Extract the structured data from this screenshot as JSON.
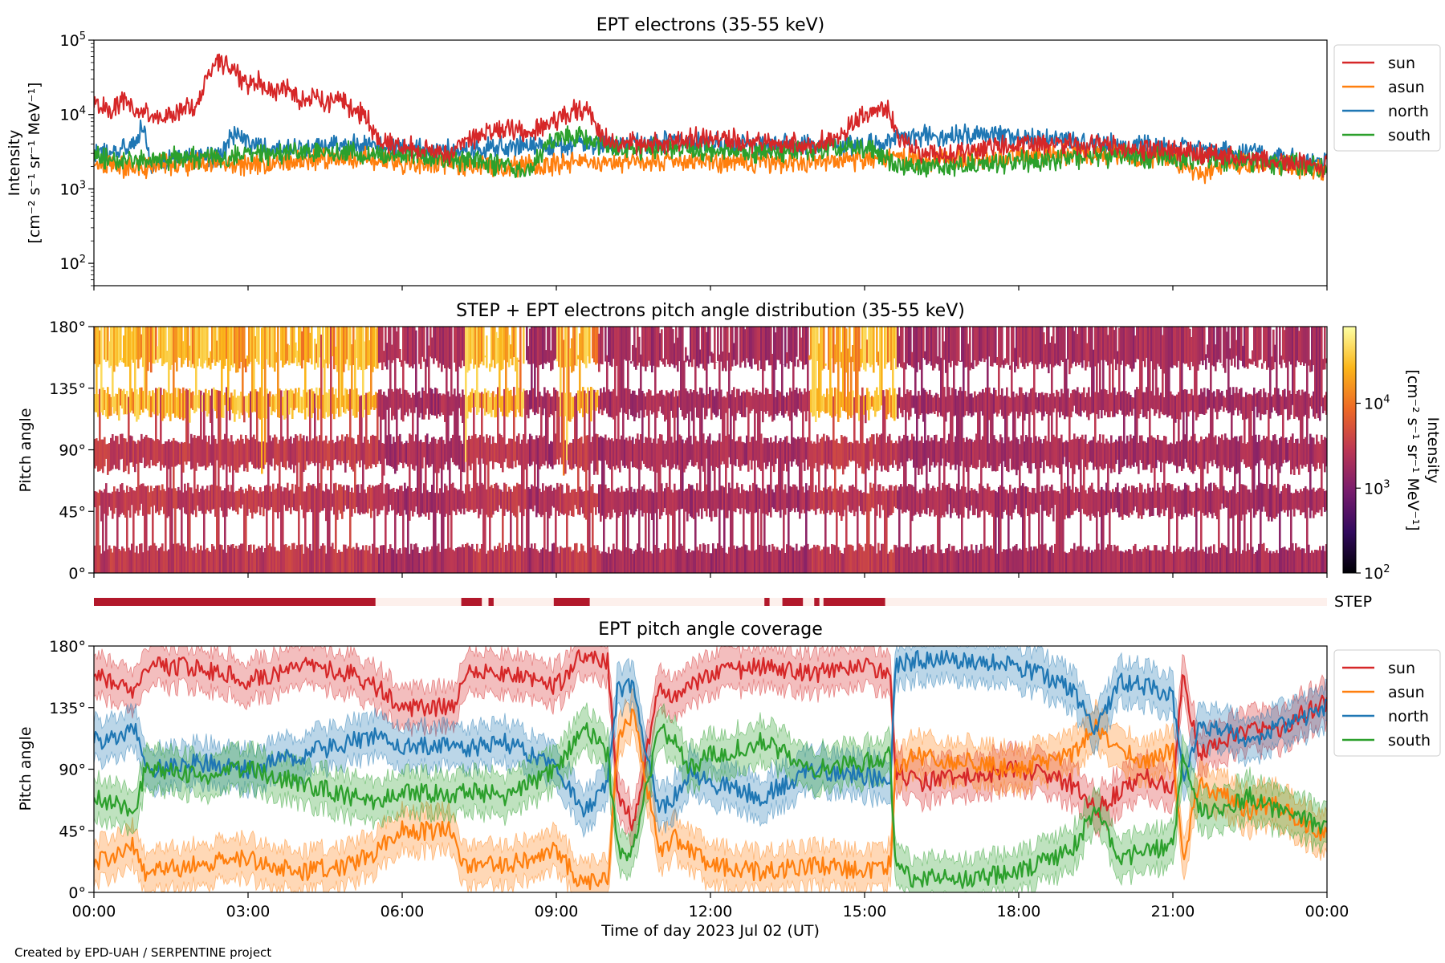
{
  "chart_data": [
    {
      "type": "line",
      "title": "EPT electrons (35-55 keV)",
      "ylabel_line1": "Intensity",
      "ylabel_line2": "[cm⁻² s⁻¹ sr⁻¹ MeV⁻¹]",
      "yscale": "log",
      "ylim": [
        50,
        100000
      ],
      "xlim_hours": [
        0,
        24
      ],
      "yticks": [
        {
          "base": "10",
          "exp": "2",
          "value": 100
        },
        {
          "base": "10",
          "exp": "3",
          "value": 1000
        },
        {
          "base": "10",
          "exp": "4",
          "value": 10000
        },
        {
          "base": "10",
          "exp": "5",
          "value": 100000
        }
      ],
      "legend_position": "outside-right-top",
      "series": [
        {
          "name": "sun",
          "color": "#d62728",
          "x": [
            0,
            0.3,
            0.6,
            0.8,
            1,
            1.2,
            1.5,
            1.8,
            2,
            2.2,
            2.4,
            2.6,
            2.8,
            3,
            3.2,
            3.5,
            3.8,
            4,
            4.3,
            4.5,
            4.8,
            5,
            5.3,
            5.5,
            6,
            6.5,
            7,
            7.2,
            7.5,
            8,
            8.5,
            9,
            9.3,
            9.6,
            9.8,
            10,
            10.5,
            11,
            11.5,
            12,
            12.5,
            13,
            13.5,
            14,
            14.5,
            15,
            15.2,
            15.5,
            15.6,
            16,
            16.5,
            17,
            17.5,
            18,
            18.5,
            19,
            19.5,
            20,
            20.5,
            21,
            21.5,
            22,
            22.5,
            23,
            23.5,
            24
          ],
          "y": [
            14000,
            12000,
            15000,
            11000,
            11000,
            9000,
            9500,
            13000,
            12000,
            30000,
            55000,
            45000,
            35000,
            25000,
            28000,
            20000,
            23000,
            16000,
            18000,
            13000,
            17000,
            12000,
            9000,
            4500,
            3800,
            3200,
            3000,
            4500,
            5200,
            6500,
            6000,
            8500,
            11000,
            11500,
            6000,
            4500,
            4200,
            4000,
            4500,
            5000,
            4500,
            4200,
            4000,
            4000,
            4500,
            10000,
            12000,
            11000,
            5200,
            3200,
            3000,
            3200,
            3600,
            4000,
            4300,
            4000,
            3800,
            3600,
            3400,
            3300,
            3000,
            2900,
            2600,
            2400,
            2200,
            2000
          ]
        },
        {
          "name": "asun",
          "color": "#ff7f0e",
          "x": [
            0,
            1,
            2,
            3,
            4,
            5,
            5.5,
            6,
            7,
            8,
            9,
            10,
            11,
            12,
            13,
            14,
            15,
            15.6,
            16,
            17,
            18,
            19,
            20,
            21,
            21.5,
            22,
            23,
            24
          ],
          "y": [
            2100,
            1900,
            2200,
            2100,
            2400,
            2700,
            2500,
            2300,
            2100,
            2000,
            2100,
            2200,
            2300,
            2300,
            2300,
            2300,
            2400,
            2700,
            2500,
            2500,
            2800,
            2900,
            2800,
            2500,
            1500,
            2200,
            2000,
            1800
          ]
        },
        {
          "name": "north",
          "color": "#1f77b4",
          "x": [
            0,
            0.5,
            0.8,
            0.95,
            1.1,
            1.5,
            2,
            2.5,
            2.8,
            3,
            3.5,
            4,
            4.5,
            5,
            5.5,
            6,
            7,
            8,
            9,
            10,
            11,
            12,
            13,
            14,
            15,
            15.6,
            16,
            17,
            18,
            19,
            20,
            21,
            22,
            23,
            24
          ],
          "y": [
            3000,
            3200,
            4000,
            7000,
            2000,
            2500,
            2600,
            3000,
            6000,
            4000,
            3300,
            3500,
            3600,
            4000,
            3800,
            3500,
            3200,
            3600,
            3800,
            4000,
            4300,
            4200,
            4000,
            3900,
            3700,
            4600,
            5000,
            5200,
            5000,
            4500,
            3800,
            3500,
            3300,
            2700,
            2200
          ]
        },
        {
          "name": "south",
          "color": "#2ca02c",
          "x": [
            0,
            1,
            2,
            3,
            4,
            5,
            5.5,
            6,
            7,
            8,
            8.5,
            9,
            9.5,
            10,
            11,
            12,
            13,
            14,
            15,
            15.6,
            16,
            17,
            18,
            19,
            20,
            21,
            22,
            23,
            24
          ],
          "y": [
            2600,
            2400,
            2700,
            2800,
            3000,
            3100,
            2800,
            3000,
            2600,
            2100,
            1700,
            4800,
            5200,
            3600,
            3400,
            3200,
            3100,
            3400,
            3700,
            2000,
            1900,
            2100,
            2400,
            2600,
            2800,
            2600,
            2500,
            2200,
            1900
          ]
        }
      ]
    },
    {
      "type": "heatmap",
      "title": "STEP + EPT electrons pitch angle distribution (35-55 keV)",
      "ylabel": "Pitch angle",
      "ylim_deg": [
        0,
        180
      ],
      "yticks": [
        "0°",
        "45°",
        "90°",
        "135°",
        "180°"
      ],
      "colorbar": {
        "label": "Intensity",
        "units": "[cm⁻² s⁻¹ sr⁻¹ MeV⁻¹]",
        "scale": "log",
        "range": [
          100,
          80000
        ],
        "ticks": [
          {
            "base": "10",
            "exp": "2",
            "value": 100
          },
          {
            "base": "10",
            "exp": "3",
            "value": 1000
          },
          {
            "base": "10",
            "exp": "4",
            "value": 10000
          }
        ],
        "colormap": [
          "#000004",
          "#320a5e",
          "#781c6d",
          "#bc3754",
          "#ed6925",
          "#fbb61a",
          "#fcffa4"
        ]
      },
      "gap_bands_deg": [
        [
          18,
          44
        ],
        [
          62,
          78
        ],
        [
          98,
          116
        ],
        [
          132,
          152
        ]
      ],
      "high_flux_intervals_hours": [
        [
          0,
          5.5
        ],
        [
          7.2,
          8.4
        ],
        [
          9.0,
          9.8
        ],
        [
          13.9,
          15.6
        ]
      ],
      "step_coverage": {
        "label": "STEP",
        "on_color": "#b2182b",
        "off_color": "#fdf0ec",
        "on_intervals_hours": [
          [
            0,
            5.48
          ],
          [
            7.15,
            7.55
          ],
          [
            7.68,
            7.78
          ],
          [
            8.95,
            9.65
          ],
          [
            13.05,
            13.15
          ],
          [
            13.4,
            13.8
          ],
          [
            14.02,
            14.12
          ],
          [
            14.2,
            15.4
          ]
        ]
      }
    },
    {
      "type": "line",
      "title": "EPT pitch angle coverage",
      "ylabel": "Pitch angle",
      "xlabel": "Time of day 2023 Jul 02 (UT)",
      "ylim_deg": [
        0,
        180
      ],
      "yticks": [
        "0°",
        "45°",
        "90°",
        "135°",
        "180°"
      ],
      "xticks": [
        "00:00",
        "03:00",
        "06:00",
        "09:00",
        "12:00",
        "15:00",
        "18:00",
        "21:00",
        "00:00"
      ],
      "band_halfwidth_deg": 15,
      "legend_position": "outside-right-top",
      "series": [
        {
          "name": "sun",
          "color": "#d62728",
          "x": [
            0,
            0.5,
            0.8,
            1,
            2,
            3,
            4,
            5,
            5.5,
            6,
            7,
            7.2,
            8,
            9,
            9.5,
            9.8,
            10,
            10.2,
            10.5,
            11,
            11.3,
            11.6,
            12,
            13,
            14,
            15,
            15.5,
            15.6,
            16,
            17,
            18,
            19,
            19.5,
            20,
            20.5,
            21,
            21.2,
            21.5,
            22,
            22.5,
            23,
            23.5,
            24
          ],
          "y": [
            160,
            150,
            145,
            165,
            165,
            155,
            165,
            160,
            150,
            135,
            135,
            160,
            160,
            150,
            175,
            170,
            170,
            70,
            50,
            150,
            140,
            150,
            160,
            165,
            160,
            165,
            160,
            90,
            80,
            85,
            90,
            80,
            60,
            75,
            85,
            75,
            160,
            100,
            110,
            120,
            115,
            130,
            140
          ]
        },
        {
          "name": "asun",
          "color": "#ff7f0e",
          "x": [
            0,
            0.5,
            0.8,
            1,
            2,
            3,
            4,
            5,
            5.5,
            6,
            7,
            7.2,
            8,
            9,
            9.5,
            9.8,
            10,
            10.2,
            10.5,
            11,
            11.3,
            11.6,
            12,
            13,
            14,
            15,
            15.5,
            15.6,
            16,
            17,
            18,
            19,
            19.5,
            20,
            20.5,
            21,
            21.2,
            21.5,
            22,
            22.5,
            23,
            23.5,
            24
          ],
          "y": [
            20,
            30,
            35,
            15,
            20,
            25,
            15,
            20,
            30,
            45,
            45,
            20,
            20,
            30,
            5,
            10,
            10,
            110,
            130,
            30,
            40,
            30,
            20,
            15,
            20,
            15,
            20,
            90,
            100,
            95,
            90,
            100,
            120,
            105,
            95,
            105,
            20,
            80,
            70,
            60,
            65,
            50,
            40
          ]
        },
        {
          "name": "north",
          "color": "#1f77b4",
          "x": [
            0,
            0.5,
            0.8,
            1,
            2,
            3,
            4,
            5,
            5.5,
            6,
            7,
            7.2,
            8,
            9,
            9.5,
            9.8,
            10,
            10.2,
            10.5,
            11,
            11.3,
            11.6,
            12,
            13,
            14,
            15,
            15.5,
            15.6,
            16,
            17,
            18,
            19,
            19.5,
            20,
            20.5,
            21,
            21.2,
            21.5,
            22,
            22.5,
            23,
            23.5,
            24
          ],
          "y": [
            110,
            115,
            120,
            90,
            95,
            90,
            100,
            110,
            115,
            105,
            110,
            105,
            110,
            90,
            60,
            70,
            80,
            150,
            150,
            60,
            70,
            90,
            80,
            70,
            90,
            85,
            80,
            165,
            170,
            170,
            165,
            150,
            120,
            155,
            150,
            145,
            80,
            120,
            120,
            110,
            120,
            125,
            135
          ]
        },
        {
          "name": "south",
          "color": "#2ca02c",
          "x": [
            0,
            0.5,
            0.8,
            1,
            2,
            3,
            4,
            5,
            5.5,
            6,
            7,
            7.2,
            8,
            9,
            9.5,
            9.8,
            10,
            10.2,
            10.5,
            11,
            11.3,
            11.6,
            12,
            13,
            14,
            15,
            15.5,
            15.6,
            16,
            17,
            18,
            19,
            19.5,
            20,
            20.5,
            21,
            21.2,
            21.5,
            22,
            22.5,
            23,
            23.5,
            24
          ],
          "y": [
            70,
            65,
            60,
            90,
            85,
            90,
            80,
            70,
            65,
            75,
            70,
            75,
            70,
            90,
            120,
            110,
            100,
            30,
            30,
            120,
            110,
            90,
            100,
            110,
            90,
            95,
            100,
            15,
            10,
            10,
            15,
            30,
            60,
            25,
            30,
            35,
            100,
            60,
            60,
            70,
            60,
            55,
            45
          ]
        }
      ]
    }
  ],
  "footer": "Created by EPD-UAH / SERPENTINE project"
}
